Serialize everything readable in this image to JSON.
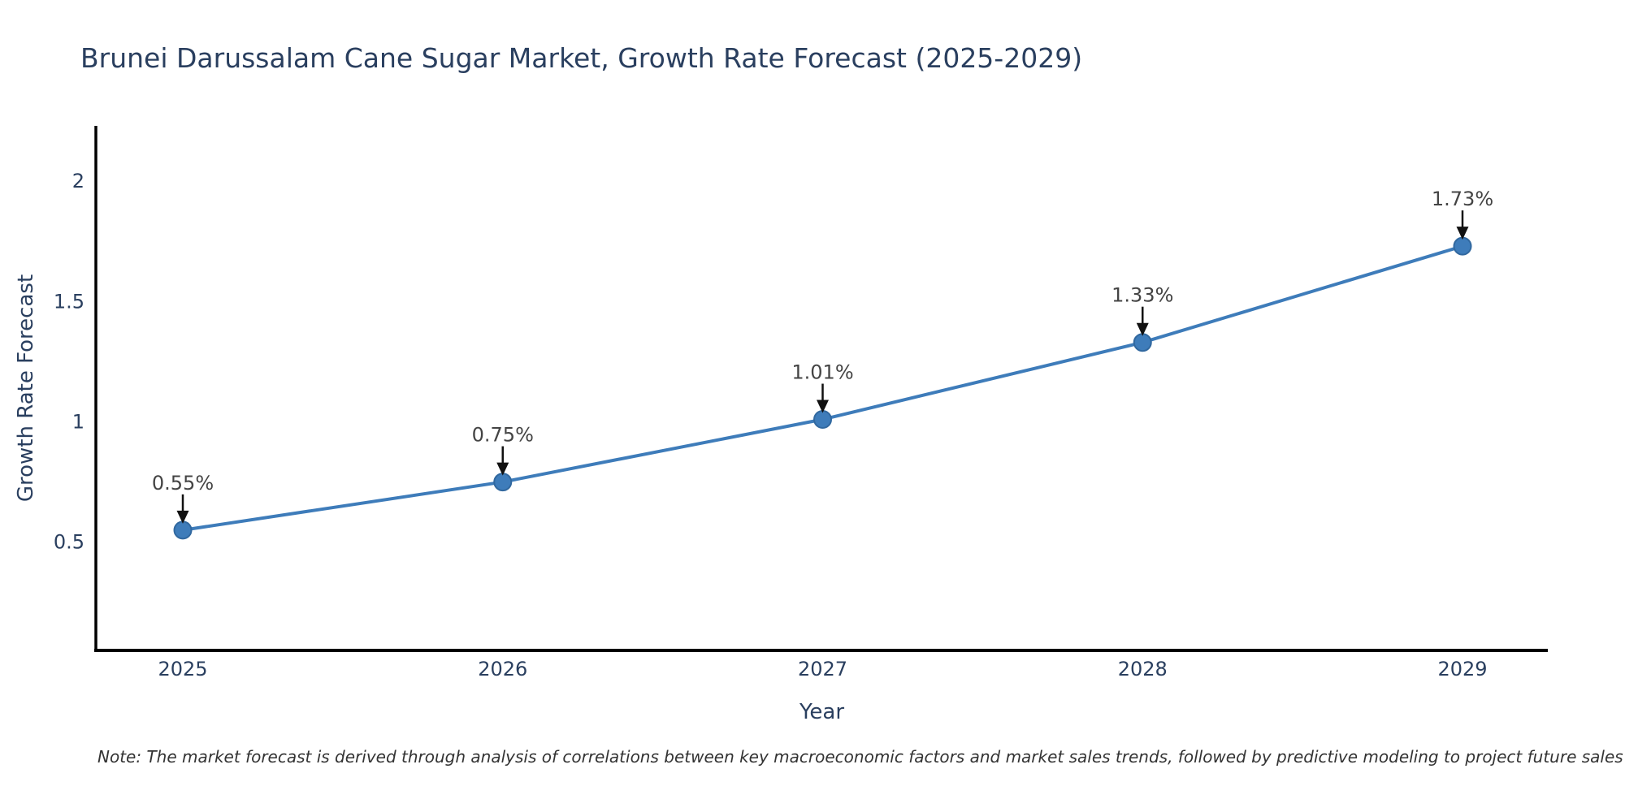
{
  "chart_data": {
    "type": "line",
    "title": "Brunei Darussalam Cane Sugar Market, Growth Rate Forecast (2025-2029)",
    "xlabel": "Year",
    "ylabel": "Growth Rate Forecast",
    "x": [
      2025,
      2026,
      2027,
      2028,
      2029
    ],
    "x_tick_labels": [
      "2025",
      "2026",
      "2027",
      "2028",
      "2029"
    ],
    "series": [
      {
        "name": "Growth Rate Forecast",
        "values": [
          0.55,
          0.75,
          1.01,
          1.33,
          1.73
        ]
      }
    ],
    "point_labels": [
      "0.55%",
      "0.75%",
      "1.01%",
      "1.33%",
      "1.73%"
    ],
    "yticks": [
      0.5,
      1.0,
      1.5,
      2.0
    ],
    "ytick_labels": [
      "0.5",
      "1",
      "1.5",
      "2"
    ],
    "ylim": [
      0.05,
      2.23
    ],
    "grid": false,
    "legend": false,
    "annotations_have_arrows": true,
    "colors": {
      "line": "#3e7cba",
      "marker_fill": "#3e7cba",
      "marker_edge": "#31689f",
      "axis_line": "#000000",
      "tick_text": "#2a3f5f",
      "annotation_text": "#444444",
      "arrow": "#111111"
    },
    "note": "Note: The market forecast is derived through analysis of correlations between key macroeconomic factors and market sales trends, followed by predictive modeling to project future sales"
  }
}
